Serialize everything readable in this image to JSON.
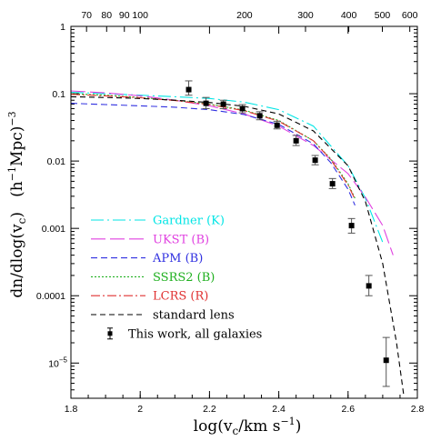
{
  "chart_data": {
    "type": "line",
    "title": "",
    "xlabel": "log(v_c/km s^-1)",
    "xlabel_parts": {
      "base": "log(v",
      "sub": "c",
      "mid": "/km s",
      "sup": "−1",
      "end": ")"
    },
    "ylabel": "dn/dlog(v_c)   (h^-1 Mpc)^-3",
    "ylabel_parts": {
      "a": "dn/dlog(v",
      "sub": "c",
      "b": ")   (h",
      "sup1": "−1",
      "c": "Mpc)",
      "sup2": "−3"
    },
    "x_range": [
      1.8,
      2.8
    ],
    "y_scale": "log",
    "y_range": [
      3e-06,
      1
    ],
    "x_ticks": [
      "1.8",
      "2",
      "2.2",
      "2.4",
      "2.6",
      "2.8"
    ],
    "x_tick_values": [
      1.8,
      2.0,
      2.2,
      2.4,
      2.6,
      2.8
    ],
    "top_axis_ticks": [
      "70",
      "80",
      "90",
      "100",
      "200",
      "300",
      "400",
      "500",
      "600"
    ],
    "top_axis_values": [
      70,
      80,
      90,
      100,
      200,
      300,
      400,
      500,
      600
    ],
    "y_ticks": [
      {
        "value": 1,
        "label": "1"
      },
      {
        "value": 0.1,
        "label": "0.1"
      },
      {
        "value": 0.01,
        "label": "0.01"
      },
      {
        "value": 0.001,
        "label": "0.001"
      },
      {
        "value": 0.0001,
        "label": "0.0001"
      },
      {
        "value": 1e-05,
        "label": "10",
        "sup": "−5"
      }
    ],
    "series": [
      {
        "name": "Gardner (K)",
        "color": "#00e5e5",
        "dash": "14,4,2,4",
        "points": [
          [
            1.8,
            0.105
          ],
          [
            1.9,
            0.1
          ],
          [
            2.0,
            0.095
          ],
          [
            2.1,
            0.09
          ],
          [
            2.2,
            0.085
          ],
          [
            2.3,
            0.075
          ],
          [
            2.4,
            0.058
          ],
          [
            2.5,
            0.033
          ],
          [
            2.6,
            0.0085
          ],
          [
            2.65,
            0.0028
          ],
          [
            2.7,
            0.00062
          ]
        ]
      },
      {
        "name": "UKST (B)",
        "color": "#e040e0",
        "dash": "16,5",
        "points": [
          [
            1.8,
            0.11
          ],
          [
            1.9,
            0.103
          ],
          [
            2.0,
            0.093
          ],
          [
            2.1,
            0.08
          ],
          [
            2.2,
            0.066
          ],
          [
            2.3,
            0.05
          ],
          [
            2.4,
            0.033
          ],
          [
            2.5,
            0.017
          ],
          [
            2.6,
            0.0065
          ],
          [
            2.65,
            0.0029
          ],
          [
            2.7,
            0.0011
          ],
          [
            2.73,
            0.0004
          ]
        ]
      },
      {
        "name": "APM (B)",
        "color": "#3030e0",
        "dash": "7,4",
        "points": [
          [
            1.8,
            0.072
          ],
          [
            1.9,
            0.069
          ],
          [
            2.0,
            0.066
          ],
          [
            2.1,
            0.063
          ],
          [
            2.2,
            0.058
          ],
          [
            2.3,
            0.049
          ],
          [
            2.4,
            0.035
          ],
          [
            2.5,
            0.018
          ],
          [
            2.55,
            0.0095
          ],
          [
            2.6,
            0.0038
          ],
          [
            2.62,
            0.0022
          ]
        ]
      },
      {
        "name": "SSRS2 (B)",
        "color": "#20b020",
        "dash": "2,2",
        "points": [
          [
            1.8,
            0.1
          ],
          [
            1.9,
            0.095
          ],
          [
            2.0,
            0.088
          ],
          [
            2.1,
            0.08
          ],
          [
            2.2,
            0.07
          ],
          [
            2.3,
            0.057
          ],
          [
            2.4,
            0.04
          ],
          [
            2.5,
            0.02
          ],
          [
            2.55,
            0.0108
          ],
          [
            2.6,
            0.0046
          ],
          [
            2.62,
            0.0028
          ]
        ]
      },
      {
        "name": "LCRS (R)",
        "color": "#e03030",
        "dash": "10,3,2,3",
        "points": [
          [
            1.8,
            0.098
          ],
          [
            1.9,
            0.093
          ],
          [
            2.0,
            0.087
          ],
          [
            2.1,
            0.079
          ],
          [
            2.2,
            0.069
          ],
          [
            2.3,
            0.056
          ],
          [
            2.4,
            0.039
          ],
          [
            2.5,
            0.02
          ],
          [
            2.55,
            0.0105
          ],
          [
            2.6,
            0.0044
          ],
          [
            2.62,
            0.0027
          ]
        ]
      },
      {
        "name": "standard lens",
        "color": "#000000",
        "dash": "6,4",
        "points": [
          [
            1.8,
            0.09
          ],
          [
            1.9,
            0.088
          ],
          [
            2.0,
            0.085
          ],
          [
            2.1,
            0.08
          ],
          [
            2.2,
            0.074
          ],
          [
            2.3,
            0.065
          ],
          [
            2.4,
            0.05
          ],
          [
            2.5,
            0.028
          ],
          [
            2.6,
            0.0085
          ],
          [
            2.65,
            0.0025
          ],
          [
            2.7,
            0.0003
          ],
          [
            2.74,
            2e-05
          ],
          [
            2.76,
            3.5e-06
          ]
        ]
      }
    ],
    "data_points": {
      "name": "This work, all galaxies",
      "color": "#000000",
      "points": [
        {
          "x": 2.14,
          "y": 0.115,
          "lo": 0.095,
          "hi": 0.155
        },
        {
          "x": 2.19,
          "y": 0.072,
          "lo": 0.06,
          "hi": 0.088
        },
        {
          "x": 2.24,
          "y": 0.07,
          "lo": 0.06,
          "hi": 0.08
        },
        {
          "x": 2.295,
          "y": 0.06,
          "lo": 0.052,
          "hi": 0.069
        },
        {
          "x": 2.345,
          "y": 0.047,
          "lo": 0.041,
          "hi": 0.054
        },
        {
          "x": 2.395,
          "y": 0.034,
          "lo": 0.03,
          "hi": 0.039
        },
        {
          "x": 2.45,
          "y": 0.02,
          "lo": 0.017,
          "hi": 0.024
        },
        {
          "x": 2.505,
          "y": 0.0103,
          "lo": 0.0088,
          "hi": 0.0121
        },
        {
          "x": 2.555,
          "y": 0.0046,
          "lo": 0.0039,
          "hi": 0.0055
        },
        {
          "x": 2.61,
          "y": 0.0011,
          "lo": 0.00085,
          "hi": 0.0014
        },
        {
          "x": 2.66,
          "y": 0.00014,
          "lo": 0.0001,
          "hi": 0.0002
        },
        {
          "x": 2.71,
          "y": 1.1e-05,
          "lo": 4.5e-06,
          "hi": 2.4e-05
        }
      ]
    },
    "legend_position": "bottom-left",
    "grid": false
  }
}
